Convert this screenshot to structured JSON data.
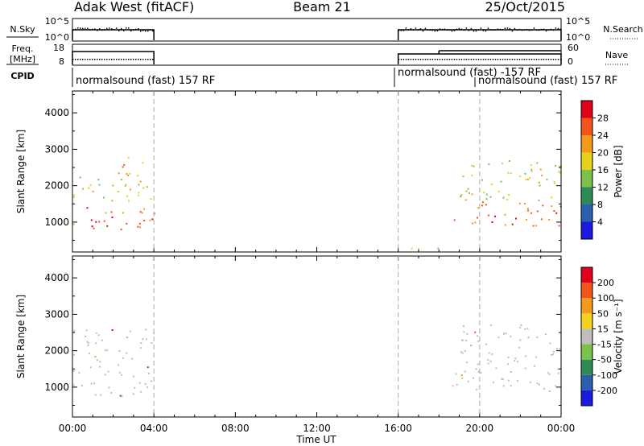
{
  "header": {
    "station": "Adak West (fitACF)",
    "beam": "Beam 21",
    "date": "25/Oct/2015"
  },
  "panels": {
    "nsky_label": "N.Sky",
    "nsky_ticks": [
      "10^5",
      "10^0"
    ],
    "nsearch_label": "N.Search",
    "nsearch_ticks": [
      "10^5",
      "10^0"
    ],
    "freq_label_1": "Freq.",
    "freq_label_2": "[MHz]",
    "freq_ticks": [
      "18",
      "8"
    ],
    "nave_label": "Nave",
    "nave_ticks": [
      "60",
      "0"
    ],
    "cpid_label": "CPID",
    "cpid_segments": [
      "normalsound (fast) 157 RF",
      "normalsound (fast) -157 RF",
      "normalsound (fast) 157 RF"
    ]
  },
  "colors": {
    "power_scale": [
      "#1a1adf",
      "#2a5fb0",
      "#2e8b57",
      "#7cc24a",
      "#e6d21e",
      "#f39a1e",
      "#f2541b",
      "#e0001b"
    ],
    "velocity_scale": [
      "#1a1adf",
      "#2a5fb0",
      "#2e8b57",
      "#7cc24a",
      "#bebebe",
      "#f2d21e",
      "#f39a1e",
      "#f2541b",
      "#e0001b"
    ],
    "ground_scatter": "#bebebe"
  },
  "chart_data": [
    {
      "type": "heatmap",
      "title": "",
      "xlabel": "Time UT",
      "ylabel": "Slant Range [km]",
      "colorbar_label": "Power [dB]",
      "colorbar_ticks": [
        "4",
        "8",
        "12",
        "16",
        "20",
        "24",
        "28"
      ],
      "x_ticks": [
        "00:00",
        "04:00",
        "08:00",
        "12:00",
        "16:00",
        "20:00",
        "00:00"
      ],
      "y_ticks": [
        "1000",
        "2000",
        "3000",
        "4000"
      ],
      "xlim_hours": [
        0,
        24
      ],
      "ylim_km": [
        180,
        4600
      ],
      "data_gaps_hours": [
        [
          4,
          16
        ]
      ],
      "dashed_markers_hours": [
        4,
        16,
        20
      ],
      "echo_regions": [
        {
          "t": [
            0,
            4
          ],
          "range_km": [
            750,
            1500
          ],
          "power_db": 26
        },
        {
          "t": [
            0,
            4
          ],
          "range_km": [
            1500,
            2300
          ],
          "power_db": 17
        },
        {
          "t": [
            2,
            4
          ],
          "range_km": [
            2300,
            2800
          ],
          "power_db": 20
        },
        {
          "t": [
            18.5,
            24
          ],
          "range_km": [
            900,
            1600
          ],
          "power_db": 25
        },
        {
          "t": [
            19,
            24
          ],
          "range_km": [
            1600,
            2800
          ],
          "power_db": 17
        },
        {
          "t": [
            16,
            18
          ],
          "range_km": [
            200,
            400
          ],
          "power_db": 14
        }
      ]
    },
    {
      "type": "heatmap",
      "title": "",
      "xlabel": "Time UT",
      "ylabel": "Slant Range [km]",
      "colorbar_label": "Velocity [m s⁻¹]",
      "colorbar_ticks": [
        "200",
        "100",
        "50",
        "15",
        "-15",
        "-50",
        "-100",
        "-200"
      ],
      "x_ticks": [
        "00:00",
        "04:00",
        "08:00",
        "12:00",
        "16:00",
        "20:00",
        "00:00"
      ],
      "y_ticks": [
        "1000",
        "2000",
        "3000",
        "4000"
      ],
      "xlim_hours": [
        0,
        24
      ],
      "ylim_km": [
        180,
        4600
      ],
      "echo_regions": [
        {
          "t": [
            0,
            4
          ],
          "range_km": [
            750,
            1600
          ],
          "velocity_ms": 0
        },
        {
          "t": [
            0,
            4
          ],
          "range_km": [
            1600,
            2600
          ],
          "velocity_ms": 0
        },
        {
          "t": [
            18.5,
            24
          ],
          "range_km": [
            900,
            1600
          ],
          "velocity_ms": 0
        },
        {
          "t": [
            19,
            24
          ],
          "range_km": [
            1600,
            2800
          ],
          "velocity_ms": 0
        }
      ]
    }
  ]
}
